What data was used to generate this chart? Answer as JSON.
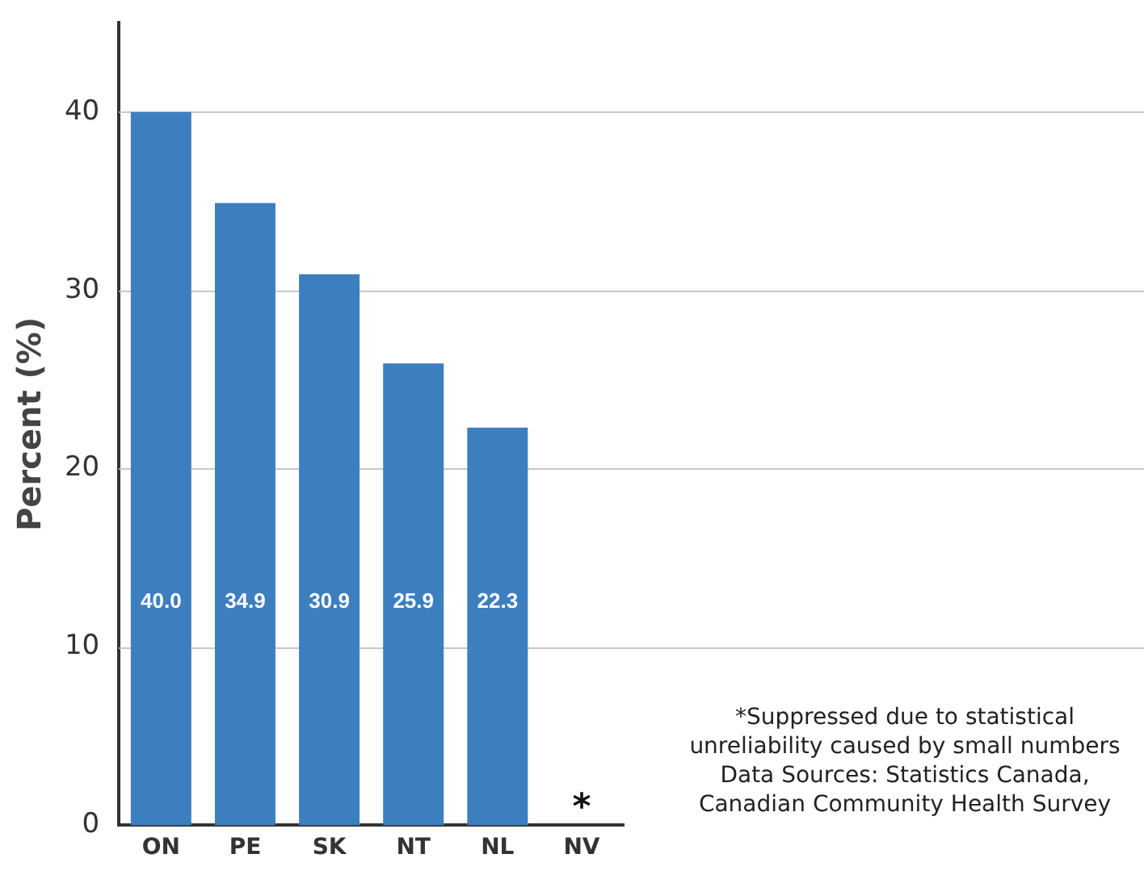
{
  "chart_data": {
    "type": "bar",
    "ylabel": "Percent (%)",
    "categories": [
      "ON",
      "PE",
      "SK",
      "NT",
      "NL",
      "NV"
    ],
    "values": [
      40.0,
      34.9,
      30.9,
      25.9,
      22.3,
      null
    ],
    "value_labels": [
      "40.0",
      "34.9",
      "30.9",
      "25.9",
      "22.3",
      "*"
    ],
    "color": "#3d7ebf",
    "ylim": [
      0,
      45
    ],
    "yticks": [
      0,
      10,
      20,
      30,
      40
    ],
    "grid": "y",
    "annotations": [
      "*Suppressed due to statistical unreliability caused by small numbers",
      "Data Sources: Statistics Canada, Canadian Community Health Survey"
    ]
  }
}
